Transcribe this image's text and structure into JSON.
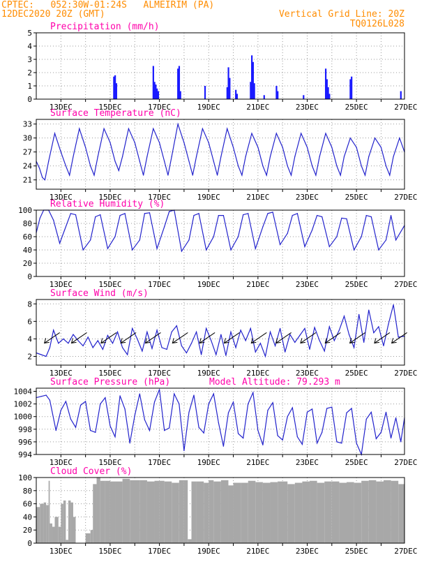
{
  "header": {
    "line1": "CPTEC:   052:30W-01:24S   ALMEIRIM (PA)",
    "line2": "12DEC2020 20Z (GMT)",
    "grid_note": "Vertical Grid Line: 20Z",
    "code": "TQ0126L028"
  },
  "colors": {
    "line": "#2222cc",
    "bar": "#1a1aff",
    "cloud": "#a8a8a8",
    "title": "#ff00aa",
    "header": "#ff8c00"
  },
  "x_axis": {
    "labels": [
      "13DEC",
      "15DEC",
      "17DEC",
      "19DEC",
      "21DEC",
      "23DEC",
      "25DEC",
      "27DEC"
    ]
  },
  "chart_data": [
    {
      "type": "bar",
      "title": "Precipitation (mm/h)",
      "ylim": [
        0,
        5
      ],
      "yticks": [
        "0",
        "1",
        "2",
        "3",
        "4",
        "5"
      ],
      "x_unit": "days from 12DEC2020 20Z",
      "x": [
        3.15,
        3.2,
        3.25,
        4.75,
        4.8,
        4.85,
        4.9,
        4.95,
        5.75,
        5.8,
        5.85,
        6.85,
        7.75,
        7.8,
        7.85,
        8.1,
        8.15,
        8.7,
        8.75,
        8.8,
        8.85,
        9.25,
        9.75,
        9.8,
        10.85,
        11.75,
        11.8,
        11.85,
        11.9,
        12.75,
        12.8,
        14.8
      ],
      "values": [
        1.7,
        1.8,
        1.2,
        2.5,
        1.3,
        1.1,
        0.8,
        0.6,
        2.3,
        2.5,
        0.6,
        1.0,
        0.9,
        2.4,
        1.6,
        0.7,
        0.4,
        1.3,
        3.3,
        2.8,
        1.2,
        0.3,
        1.0,
        0.6,
        0.3,
        2.3,
        1.5,
        0.9,
        0.4,
        1.5,
        1.7,
        0.6
      ]
    },
    {
      "type": "line",
      "title": "Surface Temperature (nC)",
      "ylim": [
        19,
        34
      ],
      "yticks": [
        "21",
        "24",
        "27",
        "30",
        "33"
      ],
      "x_unit": "days from 12DEC2020 20Z",
      "x": [
        0,
        0.13,
        0.25,
        0.35,
        0.5,
        0.75,
        1.0,
        1.2,
        1.35,
        1.5,
        1.75,
        2.0,
        2.2,
        2.35,
        2.5,
        2.75,
        3.0,
        3.2,
        3.35,
        3.5,
        3.75,
        4.0,
        4.2,
        4.35,
        4.5,
        4.75,
        5.0,
        5.2,
        5.35,
        5.5,
        5.75,
        6.0,
        6.2,
        6.35,
        6.5,
        6.75,
        7.0,
        7.2,
        7.35,
        7.5,
        7.75,
        8.0,
        8.2,
        8.35,
        8.5,
        8.75,
        9.0,
        9.2,
        9.35,
        9.5,
        9.75,
        10.0,
        10.2,
        10.35,
        10.5,
        10.75,
        11.0,
        11.2,
        11.35,
        11.5,
        11.75,
        12.0,
        12.2,
        12.35,
        12.5,
        12.75,
        13.0,
        13.2,
        13.35,
        13.5,
        13.75,
        14.0,
        14.2,
        14.35,
        14.5,
        14.75,
        14.95
      ],
      "values": [
        25,
        23.5,
        21.5,
        21,
        25,
        31,
        27,
        24,
        22,
        26,
        32,
        28,
        24,
        22,
        26,
        32,
        29,
        25,
        23,
        26,
        32,
        29,
        25,
        22,
        26,
        32,
        29,
        25,
        22,
        26,
        33,
        29,
        25,
        22,
        26,
        32,
        29,
        25,
        22,
        26,
        32,
        28,
        24,
        22,
        26,
        31,
        28,
        24,
        22,
        26,
        31,
        28,
        24,
        22,
        26,
        31,
        28,
        24,
        22,
        26,
        31,
        28,
        24,
        22,
        26,
        30,
        28,
        24,
        22,
        26,
        30,
        28,
        24,
        22,
        26,
        30,
        27
      ]
    },
    {
      "type": "line",
      "title": "Relative Humidity (%)",
      "ylim": [
        0,
        100
      ],
      "yticks": [
        "0",
        "20",
        "40",
        "60",
        "80",
        "100"
      ],
      "x_unit": "days from 12DEC2020 20Z",
      "x": [
        0,
        0.15,
        0.3,
        0.5,
        0.7,
        0.95,
        1.15,
        1.4,
        1.6,
        1.9,
        2.2,
        2.4,
        2.6,
        2.9,
        3.2,
        3.4,
        3.6,
        3.9,
        4.2,
        4.4,
        4.6,
        4.9,
        5.2,
        5.4,
        5.6,
        5.9,
        6.2,
        6.4,
        6.6,
        6.9,
        7.2,
        7.4,
        7.6,
        7.9,
        8.2,
        8.4,
        8.6,
        8.9,
        9.2,
        9.4,
        9.6,
        9.9,
        10.2,
        10.4,
        10.6,
        10.9,
        11.2,
        11.4,
        11.6,
        11.9,
        12.2,
        12.4,
        12.6,
        12.9,
        13.2,
        13.4,
        13.6,
        13.9,
        14.2,
        14.4,
        14.6,
        14.95
      ],
      "values": [
        66,
        88,
        100,
        100,
        85,
        50,
        70,
        95,
        93,
        40,
        55,
        90,
        93,
        42,
        60,
        92,
        95,
        40,
        55,
        95,
        96,
        42,
        75,
        98,
        100,
        38,
        55,
        92,
        95,
        40,
        60,
        92,
        92,
        40,
        60,
        93,
        95,
        42,
        75,
        95,
        97,
        48,
        65,
        92,
        95,
        45,
        70,
        92,
        90,
        45,
        60,
        88,
        87,
        40,
        60,
        92,
        90,
        40,
        55,
        92,
        55,
        77
      ]
    },
    {
      "type": "line",
      "title": "Surface Wind (m/s)",
      "ylim": [
        1,
        8.5
      ],
      "yticks": [
        "2",
        "4",
        "6",
        "8"
      ],
      "x_unit": "days from 12DEC2020 20Z",
      "x": [
        0,
        0.2,
        0.4,
        0.55,
        0.7,
        0.9,
        1.1,
        1.3,
        1.5,
        1.7,
        1.9,
        2.1,
        2.3,
        2.5,
        2.7,
        2.9,
        3.1,
        3.3,
        3.5,
        3.7,
        3.9,
        4.1,
        4.3,
        4.5,
        4.7,
        4.9,
        5.1,
        5.3,
        5.5,
        5.7,
        5.9,
        6.1,
        6.3,
        6.5,
        6.7,
        6.9,
        7.1,
        7.3,
        7.5,
        7.7,
        7.9,
        8.1,
        8.3,
        8.5,
        8.7,
        8.9,
        9.1,
        9.3,
        9.5,
        9.7,
        9.9,
        10.1,
        10.3,
        10.5,
        10.7,
        10.9,
        11.1,
        11.3,
        11.5,
        11.7,
        11.9,
        12.1,
        12.3,
        12.5,
        12.7,
        12.9,
        13.1,
        13.3,
        13.5,
        13.7,
        13.9,
        14.1,
        14.3,
        14.5,
        14.7,
        14.95
      ],
      "values": [
        2.4,
        2.2,
        2.0,
        3.0,
        5.0,
        3.5,
        4.0,
        3.5,
        4.5,
        3.8,
        3.2,
        4.2,
        3.0,
        3.8,
        2.8,
        4.4,
        3.5,
        4.8,
        3.0,
        2.2,
        5.2,
        4.0,
        2.6,
        4.8,
        2.9,
        5.0,
        3.0,
        2.8,
        4.8,
        5.5,
        3.2,
        2.4,
        3.5,
        4.8,
        2.2,
        5.2,
        3.8,
        2.2,
        4.5,
        2.1,
        4.8,
        3.0,
        5.0,
        3.8,
        5.2,
        2.5,
        3.5,
        2.0,
        4.8,
        3.2,
        5.2,
        2.5,
        4.5,
        3.6,
        4.4,
        5.2,
        2.8,
        5.3,
        3.8,
        2.6,
        5.4,
        3.8,
        5.0,
        6.6,
        4.5,
        3.0,
        6.8,
        3.6,
        7.3,
        4.7,
        5.4,
        3.2,
        5.7,
        7.9,
        4.2,
        4.3
      ],
      "wind_arrows": {
        "x": [
          0.5,
          1.6,
          2.8,
          3.6,
          4.6,
          5.7,
          6.8,
          7.8,
          8.9,
          9.9,
          10.9,
          11.9,
          12.9,
          13.9,
          14.6
        ],
        "count": 15,
        "direction": "from the north-east"
      }
    },
    {
      "type": "line",
      "title": "Surface Pressure (hPa)",
      "annotation": "Model Altitude: 79.293 m",
      "ylim": [
        994,
        1004.5
      ],
      "yticks": [
        "994",
        "996",
        "998",
        "1000",
        "1002",
        "1004"
      ],
      "x_unit": "days from 12DEC2020 20Z",
      "x": [
        0,
        0.2,
        0.4,
        0.55,
        0.8,
        1.0,
        1.2,
        1.4,
        1.6,
        1.8,
        2.0,
        2.2,
        2.4,
        2.6,
        2.8,
        3.0,
        3.2,
        3.4,
        3.6,
        3.8,
        4.0,
        4.2,
        4.4,
        4.6,
        4.8,
        5.0,
        5.2,
        5.4,
        5.6,
        5.8,
        6.0,
        6.2,
        6.4,
        6.6,
        6.8,
        7.0,
        7.2,
        7.4,
        7.6,
        7.8,
        8.0,
        8.2,
        8.4,
        8.6,
        8.8,
        9.0,
        9.2,
        9.4,
        9.6,
        9.8,
        10.0,
        10.2,
        10.4,
        10.6,
        10.8,
        11.0,
        11.2,
        11.4,
        11.6,
        11.8,
        12.0,
        12.2,
        12.4,
        12.6,
        12.8,
        13.0,
        13.2,
        13.4,
        13.6,
        13.8,
        14.0,
        14.2,
        14.4,
        14.6,
        14.8,
        14.95
      ],
      "values": [
        1003.0,
        1003.2,
        1003.4,
        1002.6,
        997.8,
        1001.0,
        1002.4,
        999.6,
        998.3,
        1001.8,
        1002.4,
        997.8,
        997.5,
        1002.0,
        1003.0,
        998.5,
        996.8,
        1003.3,
        1001.2,
        995.8,
        1000.2,
        1003.6,
        999.5,
        997.8,
        1002.3,
        1004.3,
        997.8,
        998.2,
        1003.6,
        1002.0,
        994.6,
        1000.7,
        1003.4,
        998.3,
        997.4,
        1002.0,
        1003.6,
        999.0,
        995.3,
        1000.6,
        1002.3,
        997.3,
        996.6,
        1002.0,
        1003.8,
        997.8,
        995.5,
        1001.0,
        1002.2,
        997.0,
        996.3,
        1000.0,
        1001.4,
        996.8,
        995.6,
        1000.7,
        1001.2,
        995.8,
        997.5,
        1001.3,
        1001.5,
        996.0,
        995.8,
        1000.6,
        1001.3,
        995.8,
        994.0,
        999.6,
        1000.7,
        996.5,
        997.5,
        1000.7,
        996.6,
        999.8,
        996.0,
        999.8
      ]
    },
    {
      "type": "area",
      "title": "Cloud Cover (%)",
      "ylim": [
        0,
        100
      ],
      "yticks": [
        "0",
        "20",
        "40",
        "60",
        "80",
        "100"
      ],
      "x_unit": "days from 12DEC2020 20Z",
      "x": [
        0,
        0.15,
        0.3,
        0.4,
        0.5,
        0.55,
        0.65,
        0.75,
        0.9,
        1.0,
        1.1,
        1.2,
        1.3,
        1.4,
        1.5,
        1.6,
        1.8,
        2.0,
        2.2,
        2.3,
        2.45,
        2.6,
        2.8,
        3.0,
        3.2,
        3.5,
        3.8,
        4.2,
        4.5,
        4.8,
        5.0,
        5.2,
        5.5,
        5.8,
        6.0,
        6.15,
        6.3,
        6.5,
        6.8,
        7.0,
        7.2,
        7.5,
        7.8,
        8.0,
        8.3,
        8.6,
        8.9,
        9.2,
        9.5,
        9.8,
        10.2,
        10.5,
        10.8,
        11.1,
        11.4,
        11.7,
        12.0,
        12.3,
        12.6,
        12.9,
        13.2,
        13.5,
        13.8,
        14.1,
        14.4,
        14.7,
        14.95
      ],
      "values": [
        55,
        60,
        62,
        58,
        95,
        30,
        25,
        40,
        25,
        60,
        65,
        5,
        65,
        62,
        40,
        0,
        0,
        15,
        20,
        90,
        100,
        95,
        95,
        94,
        94,
        98,
        96,
        96,
        94,
        95,
        95,
        94,
        92,
        96,
        96,
        6,
        94,
        94,
        92,
        96,
        94,
        96,
        88,
        92,
        92,
        95,
        93,
        92,
        93,
        94,
        90,
        92,
        94,
        95,
        92,
        94,
        94,
        92,
        93,
        92,
        95,
        96,
        94,
        96,
        95,
        90,
        85
      ]
    }
  ]
}
